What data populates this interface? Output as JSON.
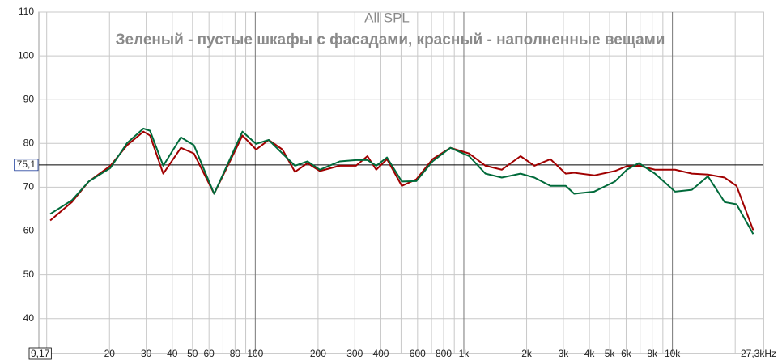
{
  "chart_data": {
    "type": "line",
    "title": "All SPL",
    "subtitle": "Зеленый - пустые шкафы с фасадами, красный - наполненные вещами",
    "log_x": true,
    "grid": true,
    "xlim": [
      9.17,
      27300
    ],
    "ylim": [
      32,
      110
    ],
    "yticks": [
      40,
      50,
      60,
      70,
      80,
      90,
      100,
      110
    ],
    "reference_line": {
      "value": 75.1,
      "label": "75,1"
    },
    "xticks": [
      {
        "value": 9.17,
        "label": "9,17"
      },
      20,
      30,
      40,
      50,
      60,
      80,
      100,
      200,
      300,
      400,
      600,
      800,
      {
        "value": 1000,
        "label": "1k"
      },
      {
        "value": 2000,
        "label": "2k"
      },
      {
        "value": 3000,
        "label": "3k"
      },
      {
        "value": 4000,
        "label": "4k"
      },
      {
        "value": 5000,
        "label": "5k"
      },
      {
        "value": 6000,
        "label": "6k"
      },
      {
        "value": 8000,
        "label": "8k"
      },
      {
        "value": 10000,
        "label": "10k"
      },
      {
        "value": 27300,
        "label": "27,3kHz"
      }
    ],
    "xminor": [
      10,
      70,
      90,
      500,
      700,
      900,
      7000,
      9000,
      20000
    ],
    "x": [
      10.4,
      13.2,
      15.9,
      20.2,
      24.3,
      29.1,
      31.3,
      36.2,
      44,
      50.8,
      63.5,
      86.8,
      101,
      116,
      135,
      155,
      178,
      204,
      254,
      304,
      345,
      380,
      428,
      504,
      592,
      708,
      862,
      1060,
      1270,
      1520,
      1870,
      2180,
      2600,
      3080,
      3380,
      4220,
      5300,
      6050,
      6900,
      8250,
      10300,
      12400,
      14800,
      17800,
      20300,
      24400
    ],
    "series": [
      {
        "name": "красный",
        "color": "#a00000",
        "values": [
          62.4,
          66.6,
          71.3,
          74.9,
          79.6,
          82.7,
          81.8,
          73.1,
          79.0,
          77.7,
          68.5,
          81.8,
          78.6,
          80.8,
          78.6,
          73.5,
          75.5,
          73.7,
          74.9,
          74.9,
          77.1,
          74.0,
          76.4,
          70.3,
          71.8,
          76.4,
          79.0,
          77.7,
          74.9,
          74.0,
          77.1,
          74.9,
          76.4,
          73.1,
          73.3,
          72.7,
          73.7,
          74.8,
          74.9,
          74.0,
          74.0,
          73.1,
          72.9,
          72.2,
          70.3,
          60.2
        ]
      },
      {
        "name": "Зеленый",
        "color": "#006a3a",
        "values": [
          63.9,
          67.0,
          71.3,
          74.4,
          80.1,
          83.4,
          82.9,
          74.9,
          81.4,
          79.6,
          68.5,
          82.7,
          79.9,
          80.8,
          77.7,
          74.9,
          75.9,
          74.0,
          75.9,
          76.2,
          76.2,
          74.9,
          76.8,
          71.3,
          71.4,
          75.9,
          79.0,
          77.1,
          73.1,
          72.2,
          73.1,
          72.2,
          70.3,
          70.3,
          68.5,
          69.0,
          71.3,
          74.0,
          75.5,
          73.1,
          69.0,
          69.4,
          72.5,
          66.6,
          66.1,
          59.3
        ]
      }
    ]
  }
}
